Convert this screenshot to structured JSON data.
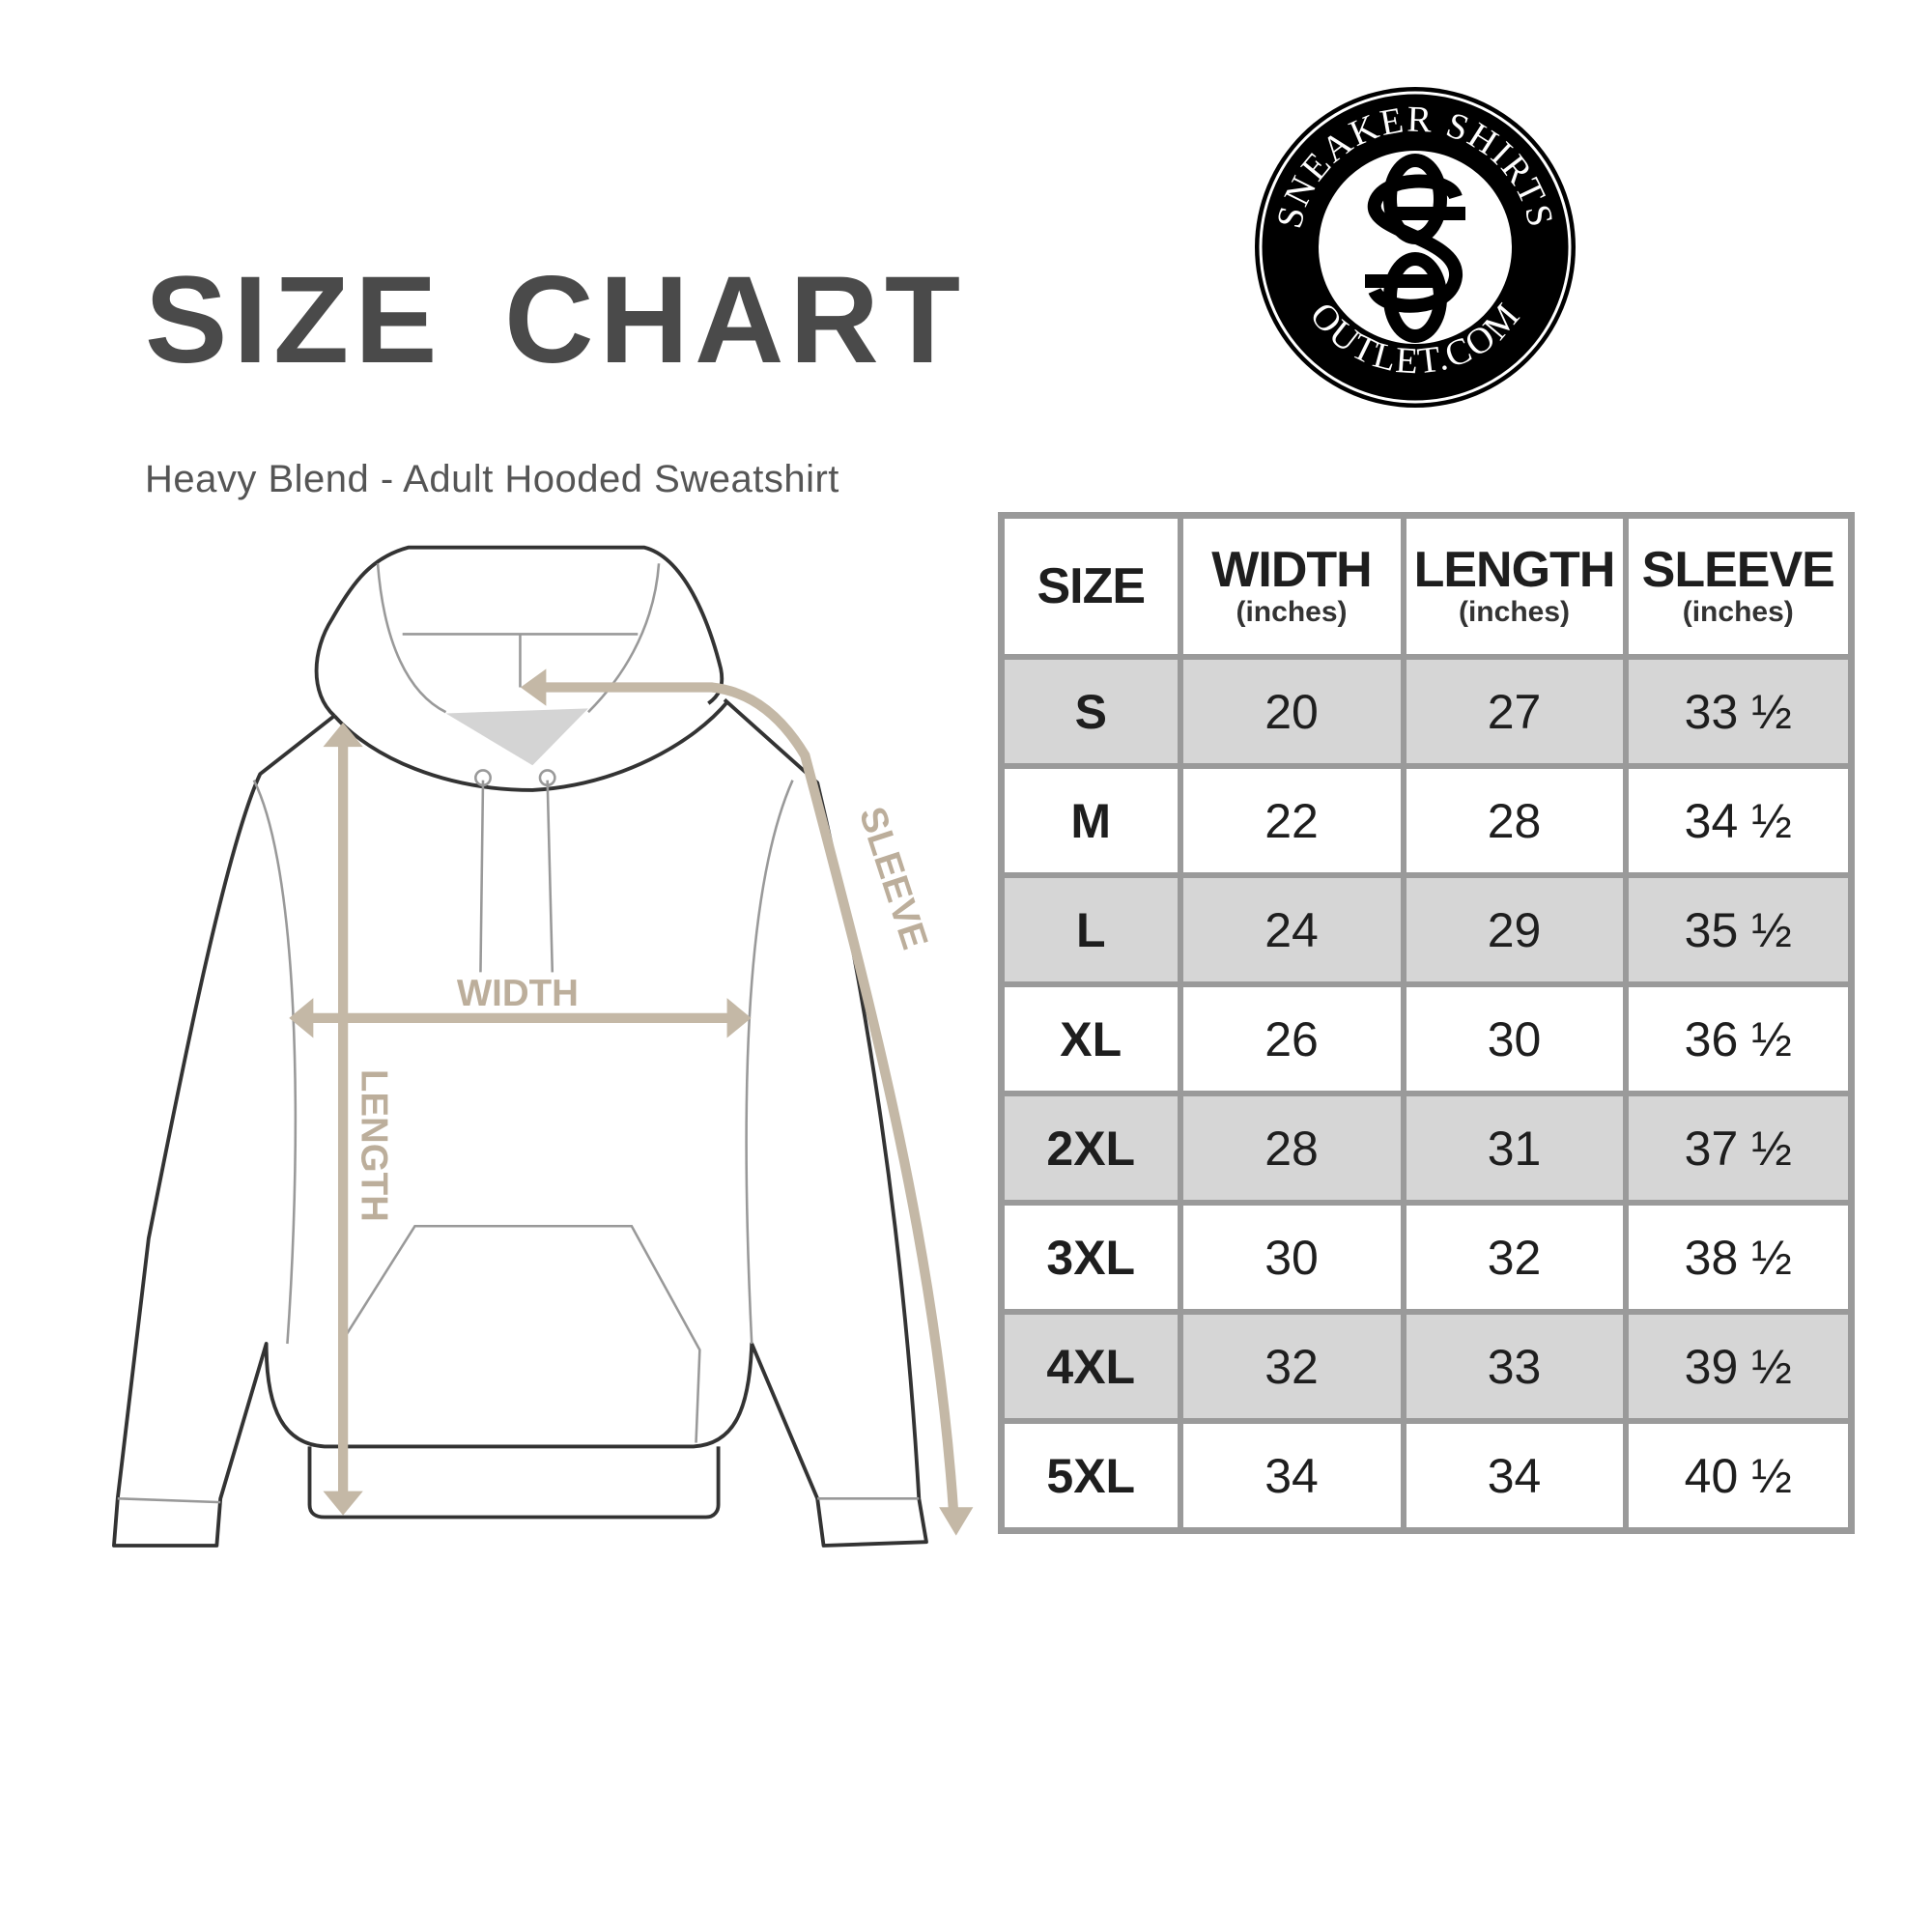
{
  "title": "SIZE CHART",
  "subtitle": "Heavy Blend - Adult Hooded Sweatshirt",
  "logo": {
    "top_text": "SNEAKER SHIRTS",
    "bottom_text": "OUTLET.COM",
    "monogram": "SS"
  },
  "diagram": {
    "width_label": "WIDTH",
    "length_label": "LENGTH",
    "sleeve_label": "SLEEVE",
    "arrow_color": "#c4b8a6"
  },
  "table": {
    "headers": [
      {
        "label": "SIZE",
        "unit": ""
      },
      {
        "label": "WIDTH",
        "unit": "(inches)"
      },
      {
        "label": "LENGTH",
        "unit": "(inches)"
      },
      {
        "label": "SLEEVE",
        "unit": "(inches)"
      }
    ],
    "rows": [
      [
        "S",
        "20",
        "27",
        "33 ½"
      ],
      [
        "M",
        "22",
        "28",
        "34 ½"
      ],
      [
        "L",
        "24",
        "29",
        "35 ½"
      ],
      [
        "XL",
        "26",
        "30",
        "36 ½"
      ],
      [
        "2XL",
        "28",
        "31",
        "37 ½"
      ],
      [
        "3XL",
        "30",
        "32",
        "38 ½"
      ],
      [
        "4XL",
        "32",
        "33",
        "39 ½"
      ],
      [
        "5XL",
        "34",
        "34",
        "40 ½"
      ]
    ],
    "shade_color": "#d6d6d6",
    "border_color": "#9a9a9a"
  }
}
